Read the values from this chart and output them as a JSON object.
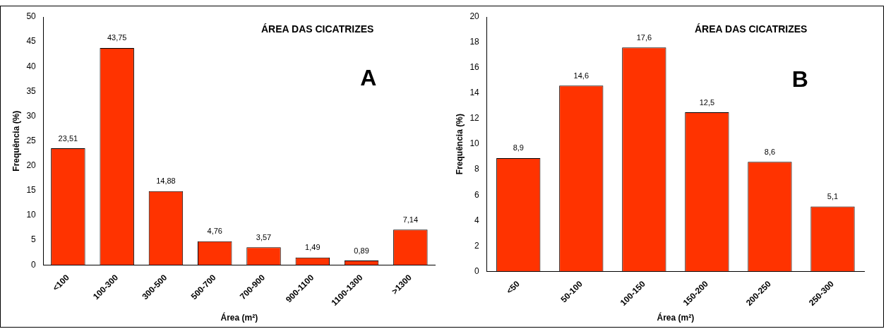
{
  "chart_data": [
    {
      "type": "bar",
      "title": "ÁREA DAS CICATRIZES",
      "xlabel": "Área (m²)",
      "ylabel": "Frequência (%)",
      "annotations": [
        "A"
      ],
      "categories": [
        "<100",
        "100-300",
        "300-500",
        "500-700",
        "700-900",
        "900-1100",
        "1100-1300",
        ">1300"
      ],
      "values": [
        23.51,
        43.75,
        14.88,
        4.76,
        3.57,
        1.49,
        0.89,
        7.14
      ],
      "value_labels": [
        "23,51",
        "43,75",
        "14,88",
        "4,76",
        "3,57",
        "1,49",
        "0,89",
        "7,14"
      ],
      "color": "#ff3300",
      "ylim": [
        0,
        50
      ],
      "yticks": [
        0,
        5,
        10,
        15,
        20,
        25,
        30,
        35,
        40,
        45,
        50
      ],
      "grid": false,
      "legend": false
    },
    {
      "type": "bar",
      "title": "ÁREA DAS CICATRIZES",
      "xlabel": "Área (m²)",
      "ylabel": "Frequência (%)",
      "annotations": [
        "B"
      ],
      "categories": [
        "<50",
        "50-100",
        "100-150",
        "150-200",
        "200-250",
        "250-300"
      ],
      "values": [
        8.9,
        14.6,
        17.6,
        12.5,
        8.6,
        5.1
      ],
      "value_labels": [
        "8,9",
        "14,6",
        "17,6",
        "12,5",
        "8,6",
        "5,1"
      ],
      "color": "#ff3300",
      "ylim": [
        0,
        20
      ],
      "yticks": [
        0,
        2,
        4,
        6,
        8,
        10,
        12,
        14,
        16,
        18,
        20
      ],
      "grid": false,
      "legend": false
    }
  ]
}
